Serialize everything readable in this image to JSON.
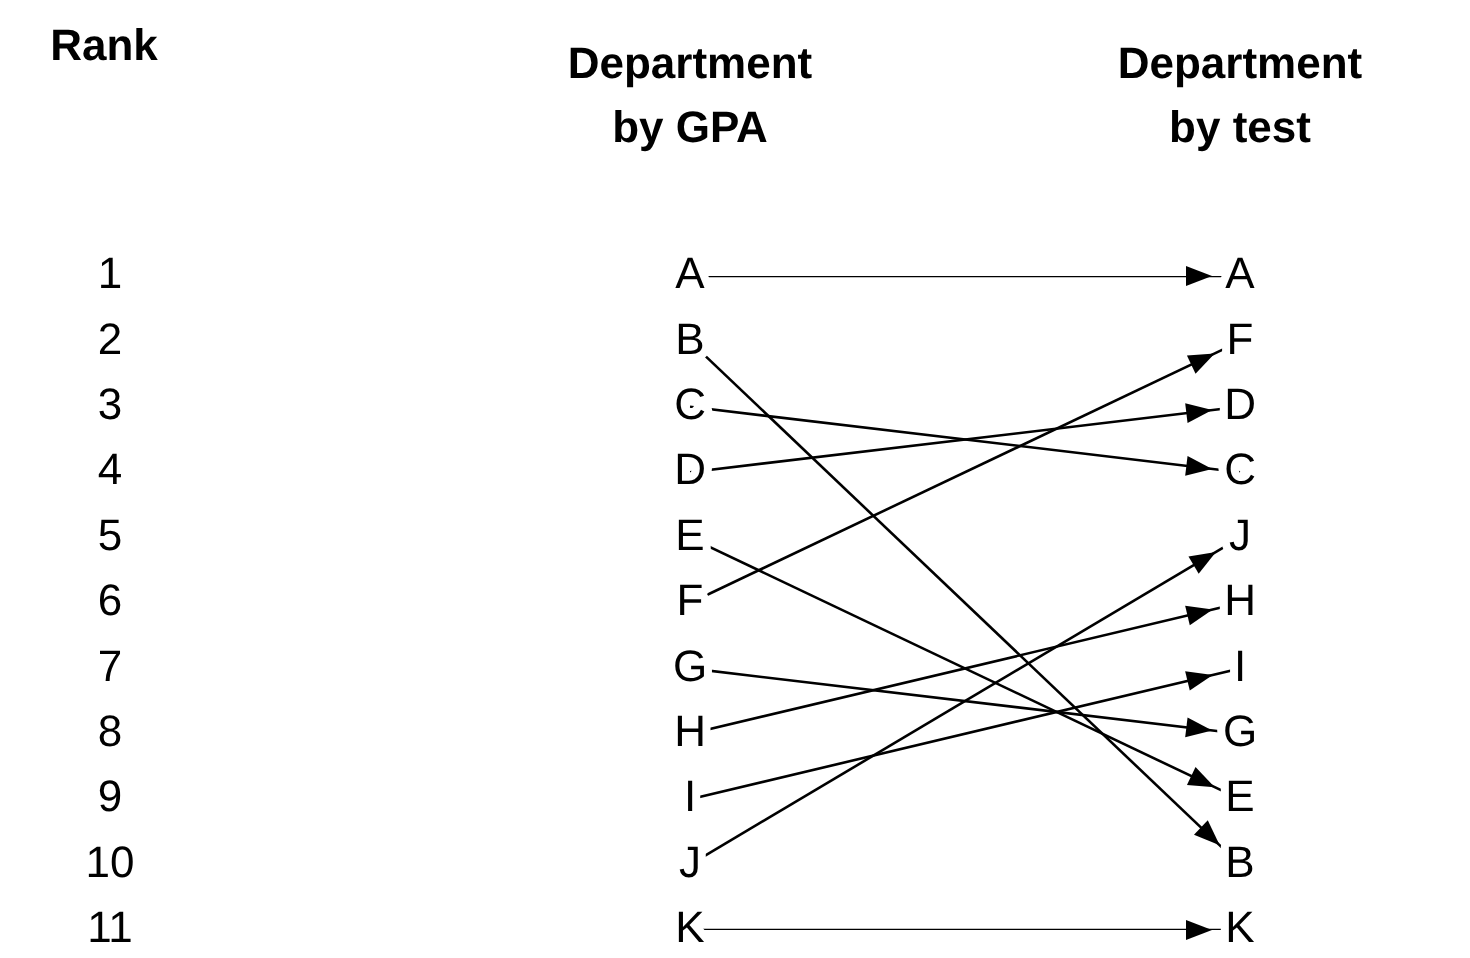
{
  "chart_data": {
    "type": "line",
    "ylabel": "Rank",
    "categories": [
      "Department by GPA",
      "Department by test"
    ],
    "ylim": [
      11,
      1
    ],
    "yticks": [
      1,
      2,
      3,
      4,
      5,
      6,
      7,
      8,
      9,
      10,
      11
    ],
    "grid": false,
    "legend": "right",
    "series": [
      {
        "name": "A",
        "color": "#000000",
        "values": [
          1,
          1
        ]
      },
      {
        "name": "B",
        "color": "#000000",
        "values": [
          2,
          10
        ]
      },
      {
        "name": "C",
        "color": "#000000",
        "values": [
          3,
          4
        ]
      },
      {
        "name": "D",
        "color": "#000000",
        "values": [
          4,
          3
        ]
      },
      {
        "name": "E",
        "color": "#000000",
        "values": [
          5,
          9
        ]
      },
      {
        "name": "F",
        "color": "#000000",
        "values": [
          6,
          2
        ]
      },
      {
        "name": "G",
        "color": "#000000",
        "values": [
          7,
          8
        ]
      },
      {
        "name": "H",
        "color": "#000000",
        "values": [
          8,
          6
        ]
      },
      {
        "name": "I",
        "color": "#000000",
        "values": [
          9,
          7
        ]
      },
      {
        "name": "J",
        "color": "#000000",
        "values": [
          10,
          5
        ]
      },
      {
        "name": "K",
        "color": "#000000",
        "values": [
          11,
          11
        ]
      }
    ]
  }
}
